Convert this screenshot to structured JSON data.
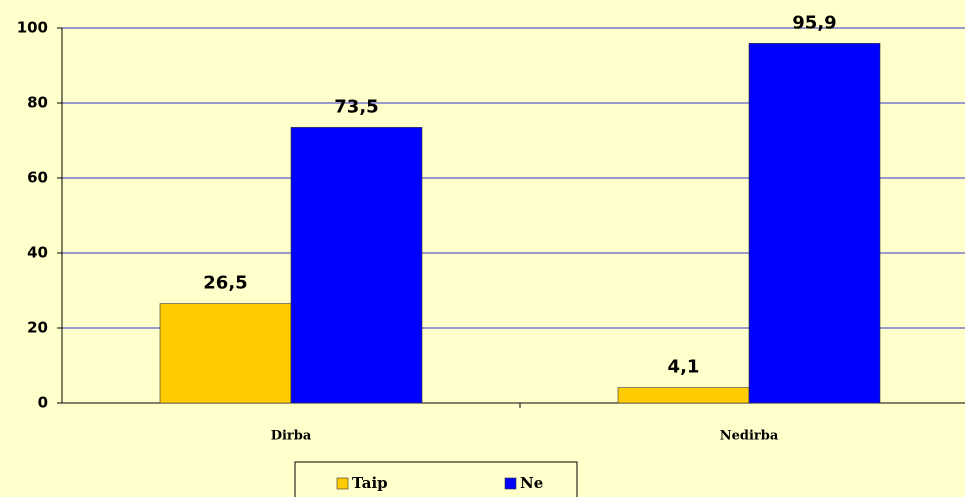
{
  "chart_data": {
    "type": "bar",
    "categories": [
      "Dirba",
      "Nedirba"
    ],
    "series": [
      {
        "name": "Taip",
        "color": "#ffcc00",
        "values": [
          26.5,
          4.1
        ],
        "value_labels": [
          "26,5",
          "4,1"
        ]
      },
      {
        "name": "Ne",
        "color": "#0000ff",
        "values": [
          73.5,
          95.9
        ],
        "value_labels": [
          "73,5",
          "95,9"
        ]
      }
    ],
    "ylim": [
      0,
      100
    ],
    "yticks": [
      0,
      20,
      40,
      60,
      80,
      100
    ],
    "grid": true,
    "legend": "bottom"
  }
}
